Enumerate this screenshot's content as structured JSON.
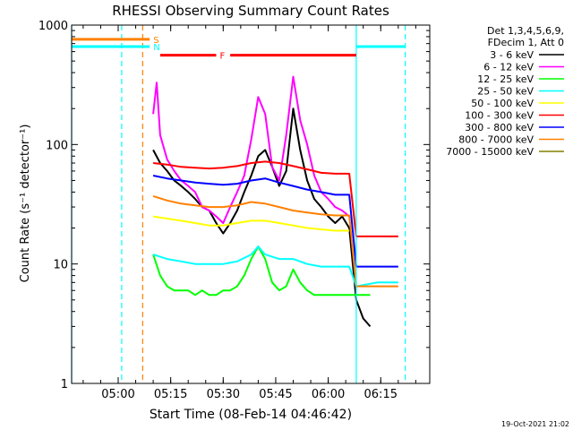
{
  "chart_data": {
    "type": "line",
    "title": "RHESSI Observing Summary Count Rates",
    "xlabel": "Start Time (08-Feb-14 04:46:42)",
    "ylabel": "Count Rate (s⁻¹ detector⁻¹)",
    "y_scale": "log",
    "ylim": [
      1,
      1000
    ],
    "xlim": [
      "04:46:42",
      "06:29:00"
    ],
    "x_ticks": [
      "05:00",
      "05:15",
      "05:30",
      "05:45",
      "06:00",
      "06:15"
    ],
    "y_ticks": [
      "1",
      "10",
      "100",
      "1000"
    ],
    "legend_header": [
      "Det 1,3,4,5,6,9,",
      "FDecim 1, Att 0"
    ],
    "legend_position": "right",
    "footer_date": "19-Oct-2021 21:02",
    "flags": [
      {
        "label": "S",
        "color": "#ff8000",
        "value_y": 760,
        "segments": [
          [
            "04:46:42",
            "05:09:00"
          ],
          [
            "06:29:00",
            "06:29:00"
          ]
        ]
      },
      {
        "label": "N",
        "color": "#00ffff",
        "value_y": 660,
        "segments": [
          [
            "04:46:42",
            "05:09:00"
          ],
          [
            "06:08:00",
            "06:22:00"
          ]
        ]
      },
      {
        "label": "F",
        "color": "#ff0000",
        "value_y": 560,
        "segments": [
          [
            "05:12:00",
            "05:28:00"
          ],
          [
            "05:32:00",
            "06:08:00"
          ]
        ]
      }
    ],
    "event_markers": [
      {
        "time": "04:46:42",
        "color": "#00ffff",
        "style": "solid"
      },
      {
        "time": "05:01:00",
        "color": "#00ffff",
        "style": "dashed"
      },
      {
        "time": "05:07:00",
        "color": "#ff8000",
        "style": "dashed"
      },
      {
        "time": "06:08:00",
        "color": "#00ffff",
        "style": "solid"
      },
      {
        "time": "06:22:00",
        "color": "#00ffff",
        "style": "dashed"
      }
    ],
    "series": [
      {
        "name": "3 - 6 keV",
        "color": "#000000",
        "points": [
          [
            "05:10",
            90
          ],
          [
            "05:12",
            70
          ],
          [
            "05:14",
            60
          ],
          [
            "05:16",
            50
          ],
          [
            "05:18",
            45
          ],
          [
            "05:20",
            40
          ],
          [
            "05:22",
            35
          ],
          [
            "05:24",
            30
          ],
          [
            "05:26",
            28
          ],
          [
            "05:28",
            22
          ],
          [
            "05:30",
            18
          ],
          [
            "05:32",
            22
          ],
          [
            "05:34",
            28
          ],
          [
            "05:36",
            40
          ],
          [
            "05:38",
            55
          ],
          [
            "05:40",
            80
          ],
          [
            "05:42",
            90
          ],
          [
            "05:44",
            65
          ],
          [
            "05:46",
            45
          ],
          [
            "05:48",
            60
          ],
          [
            "05:50",
            200
          ],
          [
            "05:52",
            90
          ],
          [
            "05:54",
            50
          ],
          [
            "05:56",
            35
          ],
          [
            "05:58",
            30
          ],
          [
            "06:00",
            25
          ],
          [
            "06:02",
            22
          ],
          [
            "06:04",
            25
          ],
          [
            "06:06",
            20
          ],
          [
            "06:08",
            5
          ],
          [
            "06:10",
            3.5
          ],
          [
            "06:12",
            3
          ]
        ]
      },
      {
        "name": "6 - 12 keV",
        "color": "#ff00ff",
        "points": [
          [
            "05:10",
            180
          ],
          [
            "05:11",
            330
          ],
          [
            "05:12",
            120
          ],
          [
            "05:14",
            75
          ],
          [
            "05:16",
            60
          ],
          [
            "05:18",
            50
          ],
          [
            "05:20",
            45
          ],
          [
            "05:22",
            40
          ],
          [
            "05:24",
            30
          ],
          [
            "05:26",
            28
          ],
          [
            "05:28",
            25
          ],
          [
            "05:30",
            22
          ],
          [
            "05:32",
            30
          ],
          [
            "05:34",
            40
          ],
          [
            "05:36",
            55
          ],
          [
            "05:38",
            110
          ],
          [
            "05:40",
            250
          ],
          [
            "05:42",
            180
          ],
          [
            "05:44",
            65
          ],
          [
            "05:46",
            50
          ],
          [
            "05:48",
            120
          ],
          [
            "05:50",
            370
          ],
          [
            "05:52",
            160
          ],
          [
            "05:54",
            100
          ],
          [
            "05:56",
            55
          ],
          [
            "05:58",
            40
          ],
          [
            "06:00",
            35
          ],
          [
            "06:02",
            30
          ],
          [
            "06:04",
            28
          ],
          [
            "06:06",
            25
          ]
        ]
      },
      {
        "name": "12 - 25 keV",
        "color": "#00ff00",
        "points": [
          [
            "05:10",
            12
          ],
          [
            "05:12",
            8
          ],
          [
            "05:14",
            6.5
          ],
          [
            "05:16",
            6
          ],
          [
            "05:18",
            6
          ],
          [
            "05:20",
            6
          ],
          [
            "05:22",
            5.5
          ],
          [
            "05:24",
            6
          ],
          [
            "05:26",
            5.5
          ],
          [
            "05:28",
            5.5
          ],
          [
            "05:30",
            6
          ],
          [
            "05:32",
            6
          ],
          [
            "05:34",
            6.5
          ],
          [
            "05:36",
            8
          ],
          [
            "05:38",
            11
          ],
          [
            "05:40",
            14
          ],
          [
            "05:42",
            11
          ],
          [
            "05:44",
            7
          ],
          [
            "05:46",
            6
          ],
          [
            "05:48",
            6.5
          ],
          [
            "05:50",
            9
          ],
          [
            "05:52",
            7
          ],
          [
            "05:54",
            6
          ],
          [
            "05:56",
            5.5
          ],
          [
            "05:58",
            5.5
          ],
          [
            "06:00",
            5.5
          ],
          [
            "06:02",
            5.5
          ],
          [
            "06:04",
            5.5
          ],
          [
            "06:06",
            5.5
          ],
          [
            "06:08",
            5.5
          ],
          [
            "06:12",
            5.5
          ]
        ]
      },
      {
        "name": "25 - 50 keV",
        "color": "#00ffff",
        "points": [
          [
            "05:10",
            12
          ],
          [
            "05:14",
            11
          ],
          [
            "05:18",
            10.5
          ],
          [
            "05:22",
            10
          ],
          [
            "05:26",
            10
          ],
          [
            "05:30",
            10
          ],
          [
            "05:34",
            10.5
          ],
          [
            "05:38",
            12
          ],
          [
            "05:40",
            14
          ],
          [
            "05:42",
            12
          ],
          [
            "05:46",
            11
          ],
          [
            "05:50",
            11
          ],
          [
            "05:54",
            10
          ],
          [
            "05:58",
            9.5
          ],
          [
            "06:02",
            9.5
          ],
          [
            "06:06",
            9.5
          ],
          [
            "06:08",
            6.5
          ],
          [
            "06:14",
            7
          ],
          [
            "06:20",
            7
          ]
        ]
      },
      {
        "name": "50 - 100 keV",
        "color": "#ffff00",
        "points": [
          [
            "05:10",
            25
          ],
          [
            "05:14",
            24
          ],
          [
            "05:18",
            23
          ],
          [
            "05:22",
            22
          ],
          [
            "05:26",
            21
          ],
          [
            "05:30",
            21
          ],
          [
            "05:34",
            22
          ],
          [
            "05:38",
            23
          ],
          [
            "05:42",
            23
          ],
          [
            "05:46",
            22
          ],
          [
            "05:50",
            21
          ],
          [
            "05:54",
            20
          ],
          [
            "05:58",
            19.5
          ],
          [
            "06:02",
            19
          ],
          [
            "06:06",
            19
          ]
        ]
      },
      {
        "name": "100 - 300 keV",
        "color": "#ff0000",
        "points": [
          [
            "05:10",
            70
          ],
          [
            "05:14",
            68
          ],
          [
            "05:18",
            65
          ],
          [
            "05:22",
            64
          ],
          [
            "05:26",
            63
          ],
          [
            "05:30",
            64
          ],
          [
            "05:34",
            66
          ],
          [
            "05:38",
            70
          ],
          [
            "05:42",
            72
          ],
          [
            "05:46",
            70
          ],
          [
            "05:50",
            66
          ],
          [
            "05:54",
            62
          ],
          [
            "05:58",
            58
          ],
          [
            "06:02",
            57
          ],
          [
            "06:06",
            57
          ],
          [
            "06:08",
            17
          ],
          [
            "06:14",
            17
          ],
          [
            "06:20",
            17
          ]
        ]
      },
      {
        "name": "300 - 800 keV",
        "color": "#0000ff",
        "points": [
          [
            "05:10",
            55
          ],
          [
            "05:14",
            52
          ],
          [
            "05:18",
            50
          ],
          [
            "05:22",
            48
          ],
          [
            "05:26",
            47
          ],
          [
            "05:30",
            46
          ],
          [
            "05:34",
            47
          ],
          [
            "05:38",
            50
          ],
          [
            "05:42",
            52
          ],
          [
            "05:46",
            48
          ],
          [
            "05:50",
            45
          ],
          [
            "05:54",
            42
          ],
          [
            "05:58",
            40
          ],
          [
            "06:02",
            38
          ],
          [
            "06:06",
            38
          ],
          [
            "06:08",
            9.5
          ],
          [
            "06:14",
            9.5
          ],
          [
            "06:20",
            9.5
          ]
        ]
      },
      {
        "name": "800 - 7000 keV",
        "color": "#ff8000",
        "points": [
          [
            "05:10",
            37
          ],
          [
            "05:14",
            34
          ],
          [
            "05:18",
            32
          ],
          [
            "05:22",
            31
          ],
          [
            "05:26",
            30
          ],
          [
            "05:30",
            30
          ],
          [
            "05:34",
            31
          ],
          [
            "05:38",
            33
          ],
          [
            "05:42",
            32
          ],
          [
            "05:46",
            30
          ],
          [
            "05:50",
            28
          ],
          [
            "05:54",
            27
          ],
          [
            "05:58",
            26
          ],
          [
            "06:02",
            25.5
          ],
          [
            "06:06",
            25.5
          ],
          [
            "06:08",
            6.5
          ],
          [
            "06:14",
            6.5
          ],
          [
            "06:20",
            6.5
          ]
        ]
      },
      {
        "name": "7000 - 15000 keV",
        "color": "#808000",
        "points": []
      }
    ]
  }
}
